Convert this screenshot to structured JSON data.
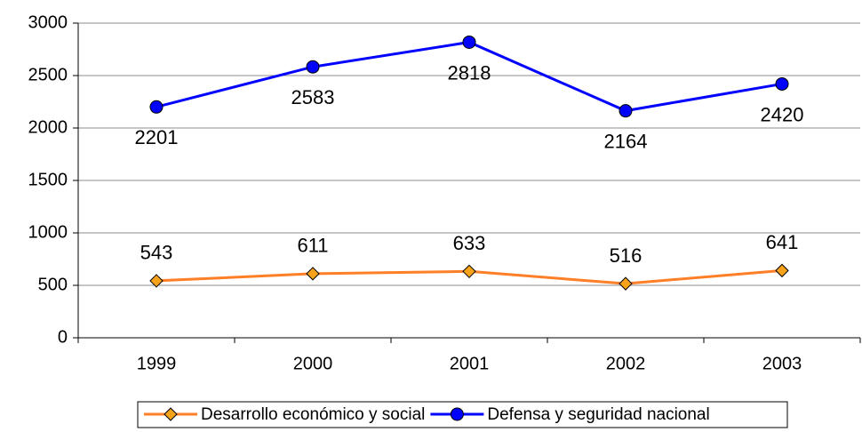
{
  "chart_data": {
    "type": "line",
    "categories": [
      "1999",
      "2000",
      "2001",
      "2002",
      "2003"
    ],
    "series": [
      {
        "name": "Desarrollo económico y social",
        "color": "#ff7f27",
        "marker": "diamond",
        "marker_color": "#f7a21b",
        "label_position": "above",
        "values": [
          543,
          611,
          633,
          516,
          641
        ]
      },
      {
        "name": "Defensa y seguridad nacional",
        "color": "#0000ff",
        "marker": "circle",
        "marker_color": "#0000ff",
        "label_position": "below",
        "values": [
          2201,
          2583,
          2818,
          2164,
          2420
        ]
      }
    ],
    "ylim": [
      0,
      3000
    ],
    "yticks": [
      0,
      500,
      1000,
      1500,
      2000,
      2500,
      3000
    ],
    "grid": true,
    "legend": "bottom"
  }
}
